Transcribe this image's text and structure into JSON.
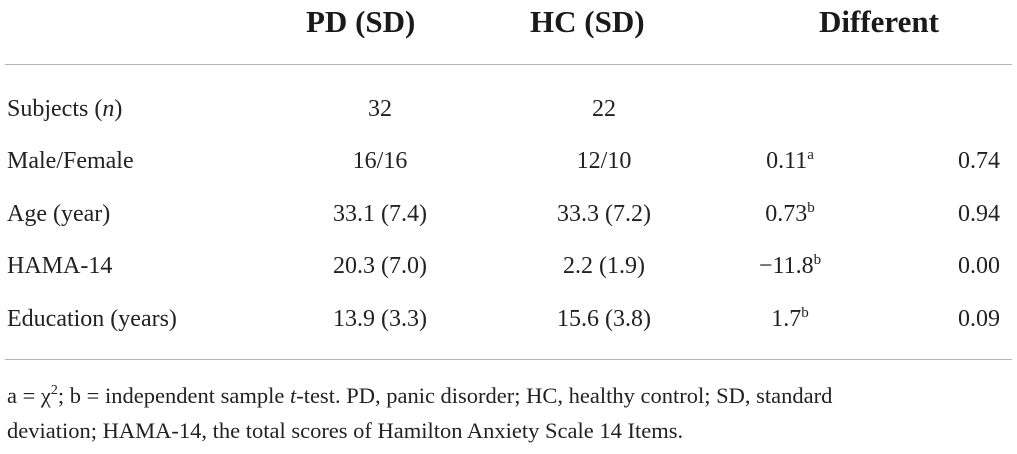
{
  "table": {
    "headers": {
      "label": "",
      "pd": "PD (SD)",
      "hc": "HC (SD)",
      "diff": "Different"
    },
    "rows": [
      {
        "label": "Subjects (",
        "label_italic": "n",
        "label_end": ")",
        "pd": "32",
        "hc": "22",
        "stat": "",
        "stat_sup": "",
        "p": ""
      },
      {
        "label": "Male/Female",
        "label_italic": "",
        "label_end": "",
        "pd": "16/16",
        "hc": "12/10",
        "stat": "0.11",
        "stat_sup": "a",
        "p": "0.74"
      },
      {
        "label": "Age (year)",
        "label_italic": "",
        "label_end": "",
        "pd": "33.1 (7.4)",
        "hc": "33.3 (7.2)",
        "stat": "0.73",
        "stat_sup": "b",
        "p": "0.94"
      },
      {
        "label": "HAMA-14",
        "label_italic": "",
        "label_end": "",
        "pd": "20.3 (7.0)",
        "hc": "2.2 (1.9)",
        "stat": "−11.8",
        "stat_sup": "b",
        "p": "0.00"
      },
      {
        "label": "Education (years)",
        "label_italic": "",
        "label_end": "",
        "pd": "13.9 (3.3)",
        "hc": "15.6 (3.8)",
        "stat": "1.7",
        "stat_sup": "b",
        "p": "0.09"
      }
    ]
  },
  "footnote": {
    "line1_a": "a = χ",
    "line1_sup": "2",
    "line1_b": "; b = independent sample ",
    "line1_italic": "t",
    "line1_c": "-test. PD, panic disorder; HC, healthy control; SD, standard",
    "line2": "deviation; HAMA-14, the total scores of Hamilton Anxiety Scale 14 Items."
  }
}
